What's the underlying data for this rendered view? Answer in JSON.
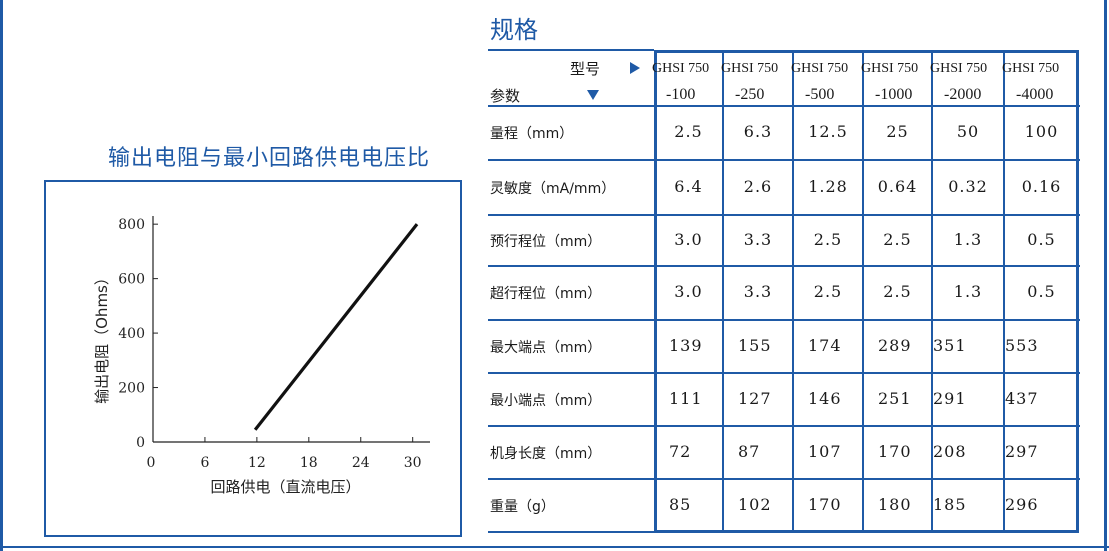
{
  "chart": {
    "title": "输出电阻与最小回路供电电压比"
  },
  "chart_data": {
    "type": "line",
    "title": "输出电阻与最小回路供电电压比",
    "xlabel": "回路供电（直流电压）",
    "ylabel": "输出电阻（Ohms）",
    "xlim": [
      0,
      32
    ],
    "ylim": [
      0,
      830
    ],
    "x_ticks": [
      "0",
      "6",
      "12",
      "18",
      "24",
      "30"
    ],
    "y_ticks": [
      "0",
      "200",
      "400",
      "600",
      "800"
    ],
    "series": [
      {
        "x": [
          11.8,
          30.5
        ],
        "y": [
          45,
          800
        ]
      }
    ],
    "grid": false
  },
  "specs": {
    "title": "规格",
    "header": {
      "model_label": "型号",
      "param_label": "参数",
      "models": [
        [
          "GHSI 750",
          "-100"
        ],
        [
          "GHSI 750",
          "-250"
        ],
        [
          "GHSI 750",
          "-500"
        ],
        [
          "GHSI 750",
          "-1000"
        ],
        [
          "GHSI 750",
          "-2000"
        ],
        [
          "GHSI 750",
          "-4000"
        ]
      ]
    },
    "rows": [
      {
        "label": "量程（mm）",
        "values": [
          "2.5",
          "6.3",
          "12.5",
          "25",
          "50",
          "100"
        ]
      },
      {
        "label": "灵敏度（mA/mm）",
        "values": [
          "6.4",
          "2.6",
          "1.28",
          "0.64",
          "0.32",
          "0.16"
        ]
      },
      {
        "label": "预行程位（mm）",
        "values": [
          "3.0",
          "3.3",
          "2.5",
          "2.5",
          "1.3",
          "0.5"
        ]
      },
      {
        "label": "超行程位（mm）",
        "values": [
          "3.0",
          "3.3",
          "2.5",
          "2.5",
          "1.3",
          "0.5"
        ]
      },
      {
        "label": "最大端点（mm）",
        "values": [
          "139",
          "155",
          "174",
          "289",
          "351",
          "553"
        ]
      },
      {
        "label": "最小端点（mm）",
        "values": [
          "111",
          "127",
          "146",
          "251",
          "291",
          "437"
        ]
      },
      {
        "label": "机身长度（mm）",
        "values": [
          "72",
          "87",
          "107",
          "170",
          "208",
          "297"
        ]
      },
      {
        "label": "重量（g）",
        "values": [
          "85",
          "102",
          "170",
          "180",
          "185",
          "296"
        ]
      }
    ]
  },
  "colors": {
    "accent": "#1f5aa6",
    "text": "#1a1a1a"
  }
}
